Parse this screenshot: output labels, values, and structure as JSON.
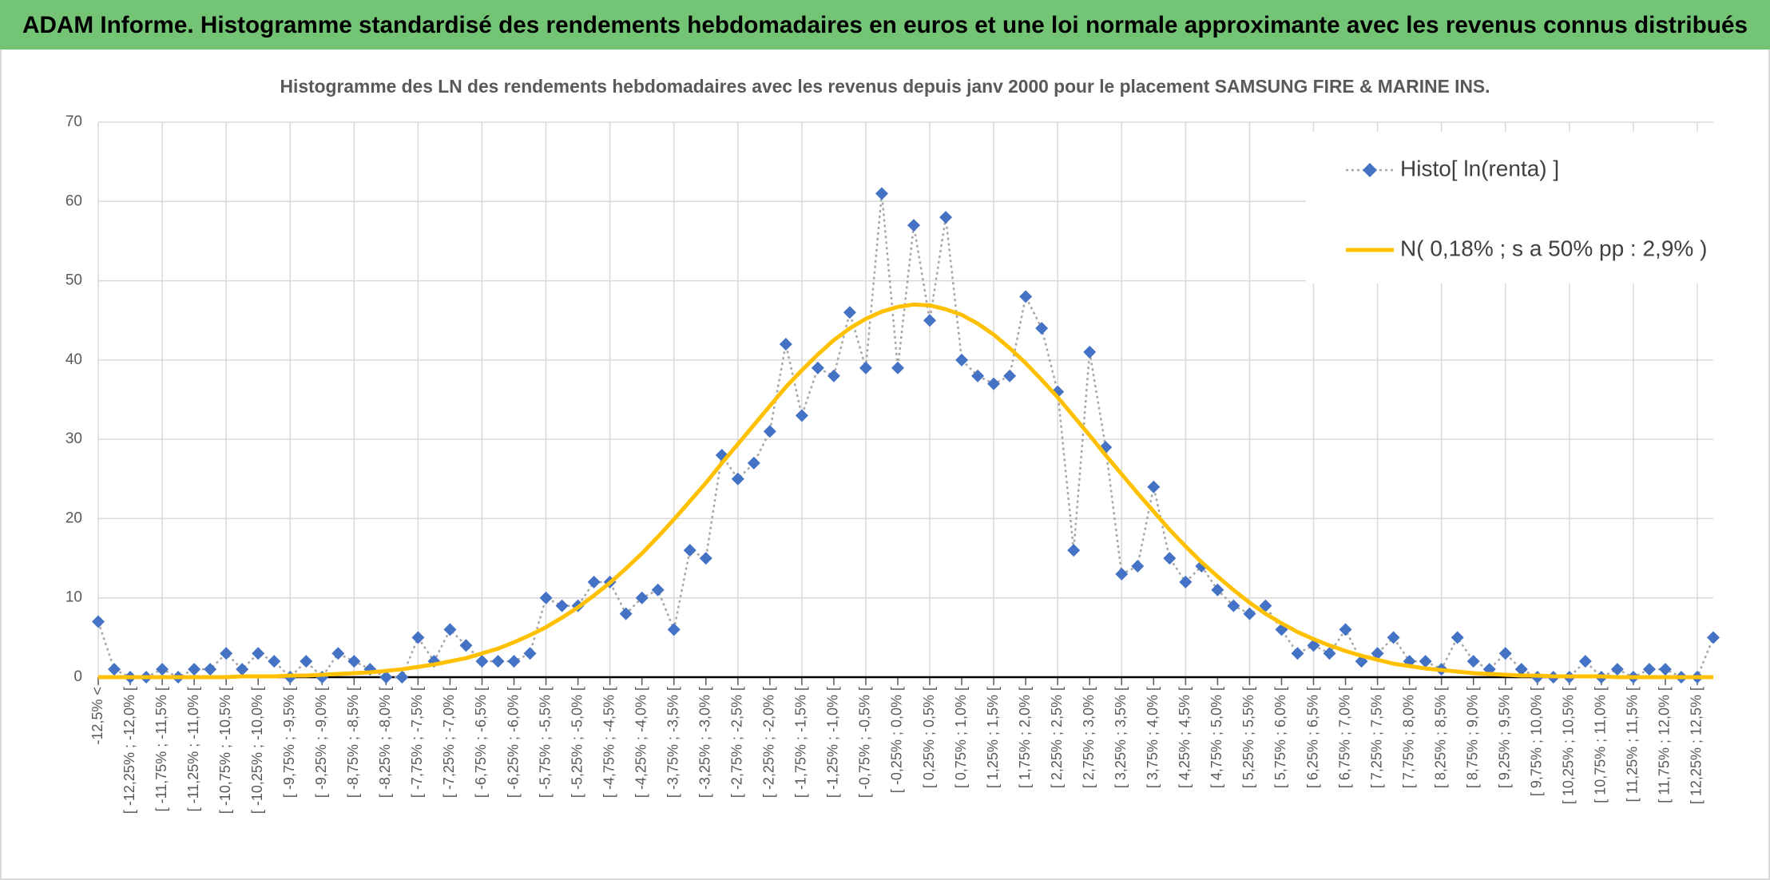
{
  "header": {
    "title": "ADAM Informe. Histogramme standardisé des rendements hebdomadaires en euros et une loi normale approximante avec les revenus connus distribués"
  },
  "chart_data": {
    "type": "line",
    "title": "Histogramme des LN des rendements hebdomadaires avec les revenus depuis janv 2000 pour le placement SAMSUNG FIRE & MARINE INS.",
    "categories": [
      "-12,5% <",
      null,
      "[ -12,25% ; -12,0% [",
      null,
      "[ -11,75% ; -11,5% [",
      null,
      "[ -11,25% ; -11,0% [",
      null,
      "[ -10,75% ; -10,5% [",
      null,
      "[ -10,25% ; -10,0% [",
      null,
      "[ -9,75% ; -9,5% [",
      null,
      "[ -9,25% ; -9,0% [",
      null,
      "[ -8,75% ; -8,5% [",
      null,
      "[ -8,25% ; -8,0% [",
      null,
      "[ -7,75% ; -7,5% [",
      null,
      "[ -7,25% ; -7,0% [",
      null,
      "[ -6,75% ; -6,5% [",
      null,
      "[ -6,25% ; -6,0% [",
      null,
      "[ -5,75% ; -5,5% [",
      null,
      "[ -5,25% ; -5,0% [",
      null,
      "[ -4,75% ; -4,5% [",
      null,
      "[ -4,25% ; -4,0% [",
      null,
      "[ -3,75% ; -3,5% [",
      null,
      "[ -3,25% ; -3,0% [",
      null,
      "[ -2,75% ; -2,5% [",
      null,
      "[ -2,25% ; -2,0% [",
      null,
      "[ -1,75% ; -1,5% [",
      null,
      "[ -1,25% ; -1,0% [",
      null,
      "[ -0,75% ; -0,5% [",
      null,
      "[ -0,25% ; 0,0% [",
      null,
      "[ 0,25% ; 0,5% [",
      null,
      "[ 0,75% ; 1,0% [",
      null,
      "[ 1,25% ; 1,5% [",
      null,
      "[ 1,75% ; 2,0% [",
      null,
      "[ 2,25% ; 2,5% [",
      null,
      "[ 2,75% ; 3,0% [",
      null,
      "[ 3,25% ; 3,5% [",
      null,
      "[ 3,75% ; 4,0% [",
      null,
      "[ 4,25% ; 4,5% [",
      null,
      "[ 4,75% ; 5,0% [",
      null,
      "[ 5,25% ; 5,5% [",
      null,
      "[ 5,75% ; 6,0% [",
      null,
      "[ 6,25% ; 6,5% [",
      null,
      "[ 6,75% ; 7,0% [",
      null,
      "[ 7,25% ; 7,5% [",
      null,
      "[ 7,75% ; 8,0% [",
      null,
      "[ 8,25% ; 8,5% [",
      null,
      "[ 8,75% ; 9,0% [",
      null,
      "[ 9,25% ; 9,5% [",
      null,
      "[ 9,75% ; 10,0% [",
      null,
      "[ 10,25% ; 10,5% [",
      null,
      "[ 10,75% ; 11,0% [",
      null,
      "[ 11,25% ; 11,5% [",
      null,
      "[ 11,75% ; 12,0% [",
      null,
      "[ 12,25% ; 12,5% [",
      null
    ],
    "series": [
      {
        "name": "Histo[ ln(renta) ]",
        "color": "#4472c4",
        "line_color": "#a6a6a6",
        "dashed": true,
        "marker": "diamond",
        "values": [
          7,
          1,
          0,
          0,
          1,
          0,
          1,
          1,
          3,
          1,
          3,
          2,
          0,
          2,
          0,
          3,
          2,
          1,
          0,
          0,
          5,
          2,
          6,
          4,
          2,
          2,
          2,
          3,
          10,
          9,
          9,
          12,
          12,
          8,
          10,
          11,
          6,
          16,
          15,
          28,
          25,
          27,
          31,
          42,
          33,
          39,
          38,
          46,
          39,
          61,
          39,
          57,
          45,
          58,
          40,
          38,
          37,
          38,
          48,
          44,
          36,
          16,
          41,
          29,
          13,
          14,
          24,
          15,
          12,
          14,
          11,
          9,
          8,
          9,
          6,
          3,
          4,
          3,
          6,
          2,
          3,
          5,
          2,
          2,
          1,
          5,
          2,
          1,
          3,
          1,
          0,
          0,
          0,
          2,
          0,
          1,
          0,
          1,
          1,
          0,
          0,
          5
        ]
      },
      {
        "name": "N( 0,18% ; s a 50% pp : 2,9% )",
        "color": "#ffc000",
        "marker": "none",
        "values": [
          0,
          0,
          0,
          0,
          0,
          0,
          0,
          0,
          0,
          0.1,
          0.1,
          0.1,
          0.2,
          0.2,
          0.3,
          0.4,
          0.5,
          0.6,
          0.8,
          1.0,
          1.3,
          1.6,
          2.0,
          2.4,
          3.0,
          3.6,
          4.4,
          5.3,
          6.3,
          7.5,
          8.8,
          10.3,
          11.9,
          13.7,
          15.6,
          17.7,
          19.9,
          22.2,
          24.5,
          27.0,
          29.4,
          31.8,
          34.2,
          36.6,
          38.7,
          40.7,
          42.5,
          44.0,
          45.2,
          46.1,
          46.7,
          47.0,
          46.9,
          46.4,
          45.7,
          44.6,
          43.2,
          41.5,
          39.6,
          37.5,
          35.3,
          32.9,
          30.5,
          28.0,
          25.6,
          23.2,
          20.9,
          18.6,
          16.5,
          14.5,
          12.7,
          11.0,
          9.4,
          8.0,
          6.8,
          5.7,
          4.8,
          4.0,
          3.3,
          2.7,
          2.2,
          1.7,
          1.4,
          1.1,
          0.9,
          0.7,
          0.5,
          0.4,
          0.3,
          0.2,
          0.2,
          0.1,
          0.1,
          0.1,
          0.1,
          0,
          0,
          0,
          0,
          0,
          0,
          0
        ]
      }
    ],
    "ylim": [
      0,
      70
    ],
    "yticks": [
      0,
      10,
      20,
      30,
      40,
      50,
      60,
      70
    ],
    "grid": true,
    "legend": "top-right"
  }
}
